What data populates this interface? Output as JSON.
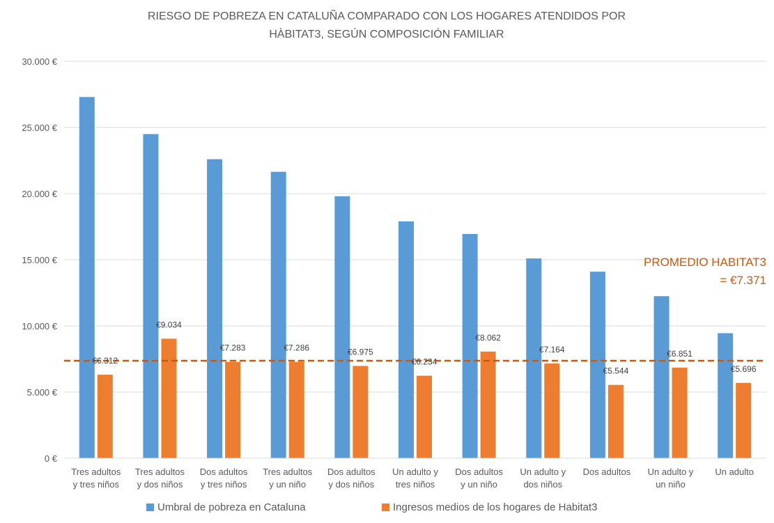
{
  "chart_data": {
    "type": "bar",
    "title_lines": [
      "RIESGO DE POBREZA EN CATALUÑA COMPARADO CON LOS HOGARES ATENDIDOS POR",
      "HÀBITAT3, SEGÚN COMPOSICIÓN FAMILIAR"
    ],
    "categories": [
      [
        "Tres adultos",
        "y tres niños"
      ],
      [
        "Tres adultos",
        "y dos niños"
      ],
      [
        "Dos adultos",
        "y tres niños"
      ],
      [
        "Tres adultos",
        "y un niño"
      ],
      [
        "Dos adultos",
        "y dos niños"
      ],
      [
        "Un adulto y",
        "tres niños"
      ],
      [
        "Dos adultos",
        "y un niño"
      ],
      [
        "Un adulto y",
        "dos niños"
      ],
      [
        "Dos adultos"
      ],
      [
        "Un adulto y",
        "un niño"
      ],
      [
        "Un adulto"
      ]
    ],
    "series": [
      {
        "name": "Umbral de pobreza en Cataluna",
        "color": "#5b9bd5",
        "values": [
          27300,
          24500,
          22600,
          21650,
          19800,
          17900,
          16950,
          15100,
          14100,
          12250,
          9450
        ]
      },
      {
        "name": "Ingresos medios de los hogares de Habitat3",
        "color": "#ed7d31",
        "values": [
          6312,
          9034,
          7283,
          7286,
          6975,
          6234,
          8062,
          7164,
          5544,
          6851,
          5696
        ],
        "data_labels": [
          "€6.312",
          "€9.034",
          "€7.283",
          "€7.286",
          "€6.975",
          "€6.234",
          "€8.062",
          "€7.164",
          "€5.544",
          "€6.851",
          "€5.696"
        ]
      }
    ],
    "yticks": [
      {
        "value": 0,
        "label": "0 €"
      },
      {
        "value": 5000,
        "label": "5.000 €"
      },
      {
        "value": 10000,
        "label": "10.000 €"
      },
      {
        "value": 15000,
        "label": "15.000 €"
      },
      {
        "value": 20000,
        "label": "20.000 €"
      },
      {
        "value": 25000,
        "label": "25.000 €"
      },
      {
        "value": 30000,
        "label": "30.000 €"
      }
    ],
    "ylim": [
      0,
      30000
    ],
    "grid": true,
    "legend_position": "bottom",
    "reference_line": {
      "value": 7371,
      "color": "#c55a11",
      "label_lines": [
        "PROMEDIO HABITAT3",
        "= €7.371"
      ]
    }
  }
}
